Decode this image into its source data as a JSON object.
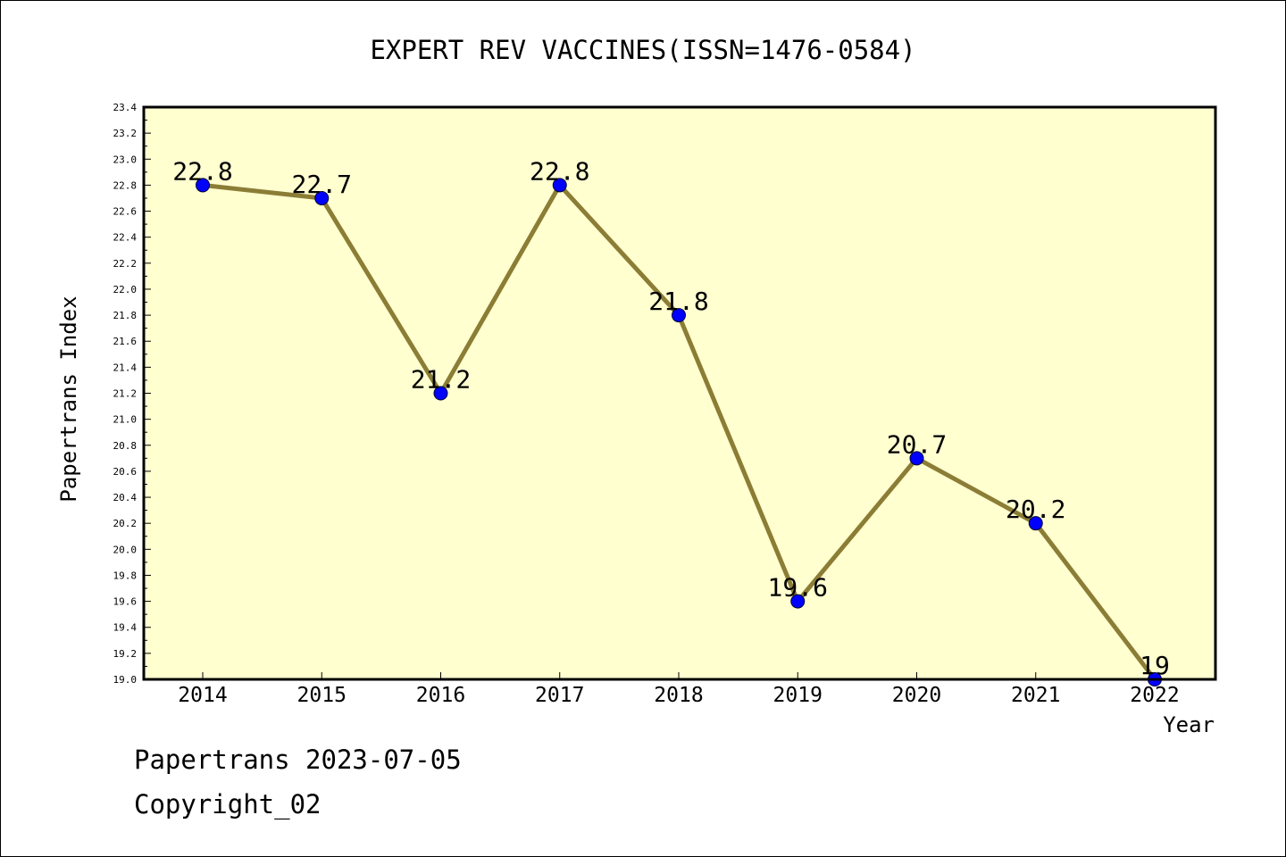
{
  "chart_data": {
    "type": "line",
    "title": "EXPERT REV VACCINES(ISSN=1476-0584)",
    "xlabel": "Year",
    "ylabel": "Papertrans Index",
    "categories": [
      "2014",
      "2015",
      "2016",
      "2017",
      "2018",
      "2019",
      "2020",
      "2021",
      "2022"
    ],
    "series": [
      {
        "values": [
          22.8,
          22.7,
          21.2,
          22.8,
          21.8,
          19.6,
          20.7,
          20.2,
          19.0
        ],
        "data_labels": [
          "22.8",
          "22.7",
          "21.2",
          "22.8",
          "21.8",
          "19.6",
          "20.7",
          "20.2",
          "19"
        ]
      }
    ],
    "ylim": [
      19.0,
      23.4
    ],
    "yticks": [
      "19.0",
      "19.2",
      "19.4",
      "19.6",
      "19.8",
      "20.0",
      "20.2",
      "20.4",
      "20.6",
      "20.8",
      "21.0",
      "21.2",
      "21.4",
      "21.6",
      "21.8",
      "22.0",
      "22.2",
      "22.4",
      "22.6",
      "22.8",
      "23.0",
      "23.2",
      "23.4"
    ],
    "grid": false,
    "colors": {
      "plot_background": "#ffffd0",
      "line": "#8b7d35",
      "marker": "#0000ff"
    }
  },
  "footer": {
    "date_line": "Papertrans 2023-07-05",
    "copyright": "Copyright_02"
  }
}
